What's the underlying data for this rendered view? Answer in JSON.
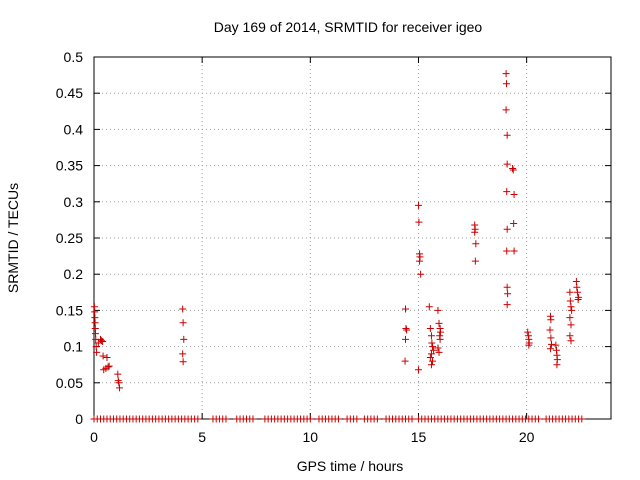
{
  "chart_data": {
    "type": "scatter",
    "title": "Day 169 of 2014, SRMTID for receiver igeo",
    "xlabel": "GPS time / hours",
    "ylabel": "SRMTID / TECUs",
    "xlim": [
      0,
      23.9
    ],
    "ylim": [
      0,
      0.5
    ],
    "xticks": [
      0,
      5,
      10,
      15,
      20
    ],
    "yticks": [
      0,
      0.05,
      0.1,
      0.15,
      0.2,
      0.25,
      0.3,
      0.35,
      0.4,
      0.45,
      0.5
    ],
    "xtick_labels": [
      "0",
      "5",
      "10",
      "15",
      "20"
    ],
    "ytick_labels": [
      "0",
      "0.05",
      "0.1",
      "0.15",
      "0.2",
      "0.25",
      "0.3",
      "0.35",
      "0.4",
      "0.45",
      "0.5"
    ],
    "grid": true,
    "marker": "+",
    "color": "#cc0000",
    "series": [
      {
        "name": "SRMTID",
        "points": [
          [
            0.02,
            0.155
          ],
          [
            0.03,
            0.148
          ],
          [
            0.04,
            0.14
          ],
          [
            0.05,
            0.133
          ],
          [
            0.06,
            0.125
          ],
          [
            0.07,
            0.118
          ],
          [
            0.08,
            0.11
          ],
          [
            0.1,
            0.1
          ],
          [
            0.12,
            0.092
          ],
          [
            0.2,
            0.105
          ],
          [
            0.3,
            0.11
          ],
          [
            0.35,
            0.108
          ],
          [
            0.4,
            0.107
          ],
          [
            0.42,
            0.087
          ],
          [
            0.45,
            0.068
          ],
          [
            0.55,
            0.07
          ],
          [
            0.6,
            0.085
          ],
          [
            0.65,
            0.072
          ],
          [
            0.7,
            0.073
          ],
          [
            1.1,
            0.062
          ],
          [
            1.12,
            0.053
          ],
          [
            1.15,
            0.05
          ],
          [
            1.18,
            0.043
          ],
          [
            4.1,
            0.152
          ],
          [
            4.12,
            0.133
          ],
          [
            4.15,
            0.11
          ],
          [
            4.1,
            0.09
          ],
          [
            4.12,
            0.079
          ],
          [
            14.4,
            0.152
          ],
          [
            14.42,
            0.125
          ],
          [
            14.45,
            0.123
          ],
          [
            14.4,
            0.11
          ],
          [
            14.38,
            0.08
          ],
          [
            15.0,
            0.295
          ],
          [
            15.02,
            0.272
          ],
          [
            15.05,
            0.228
          ],
          [
            15.07,
            0.224
          ],
          [
            15.05,
            0.218
          ],
          [
            15.1,
            0.2
          ],
          [
            15.0,
            0.068
          ],
          [
            15.5,
            0.155
          ],
          [
            15.55,
            0.125
          ],
          [
            15.6,
            0.115
          ],
          [
            15.62,
            0.105
          ],
          [
            15.65,
            0.1
          ],
          [
            15.7,
            0.095
          ],
          [
            15.6,
            0.09
          ],
          [
            15.55,
            0.085
          ],
          [
            15.65,
            0.08
          ],
          [
            15.6,
            0.075
          ],
          [
            15.9,
            0.15
          ],
          [
            15.95,
            0.132
          ],
          [
            16.0,
            0.125
          ],
          [
            16.02,
            0.12
          ],
          [
            15.98,
            0.115
          ],
          [
            16.0,
            0.11
          ],
          [
            15.9,
            0.098
          ],
          [
            15.95,
            0.092
          ],
          [
            17.6,
            0.268
          ],
          [
            17.62,
            0.262
          ],
          [
            17.6,
            0.258
          ],
          [
            17.65,
            0.242
          ],
          [
            17.63,
            0.218
          ],
          [
            19.05,
            0.477
          ],
          [
            19.07,
            0.463
          ],
          [
            19.05,
            0.427
          ],
          [
            19.1,
            0.392
          ],
          [
            19.1,
            0.352
          ],
          [
            19.08,
            0.314
          ],
          [
            19.1,
            0.262
          ],
          [
            19.08,
            0.232
          ],
          [
            19.1,
            0.182
          ],
          [
            19.12,
            0.173
          ],
          [
            19.1,
            0.158
          ],
          [
            19.35,
            0.346
          ],
          [
            19.38,
            0.344
          ],
          [
            19.42,
            0.31
          ],
          [
            19.4,
            0.27
          ],
          [
            19.42,
            0.232
          ],
          [
            20.05,
            0.12
          ],
          [
            20.08,
            0.115
          ],
          [
            20.1,
            0.11
          ],
          [
            20.12,
            0.105
          ],
          [
            20.1,
            0.102
          ],
          [
            21.1,
            0.142
          ],
          [
            21.12,
            0.137
          ],
          [
            21.08,
            0.123
          ],
          [
            21.12,
            0.112
          ],
          [
            21.15,
            0.103
          ],
          [
            21.1,
            0.097
          ],
          [
            21.35,
            0.102
          ],
          [
            21.38,
            0.095
          ],
          [
            21.4,
            0.088
          ],
          [
            21.42,
            0.082
          ],
          [
            21.4,
            0.075
          ],
          [
            22.0,
            0.175
          ],
          [
            22.02,
            0.163
          ],
          [
            22.05,
            0.155
          ],
          [
            22.08,
            0.15
          ],
          [
            22.0,
            0.14
          ],
          [
            22.05,
            0.13
          ],
          [
            22.0,
            0.115
          ],
          [
            22.05,
            0.108
          ],
          [
            22.3,
            0.19
          ],
          [
            22.32,
            0.182
          ],
          [
            22.35,
            0.175
          ],
          [
            22.4,
            0.168
          ],
          [
            22.38,
            0.165
          ]
        ],
        "zero_points_x": [
          0.0,
          0.15,
          0.3,
          0.45,
          0.6,
          0.75,
          0.9,
          1.05,
          1.2,
          1.35,
          1.5,
          1.65,
          1.8,
          1.95,
          2.1,
          2.25,
          2.4,
          2.55,
          2.7,
          2.85,
          3.0,
          3.15,
          3.3,
          3.45,
          3.6,
          3.75,
          3.9,
          4.05,
          4.2,
          4.35,
          4.5,
          4.65,
          4.8,
          5.5,
          5.65,
          5.8,
          5.95,
          6.1,
          6.6,
          6.75,
          6.9,
          7.05,
          7.2,
          7.35,
          7.9,
          8.05,
          8.2,
          8.35,
          8.5,
          8.65,
          8.8,
          8.95,
          9.1,
          9.25,
          9.4,
          9.55,
          9.7,
          9.85,
          10.0,
          10.4,
          10.55,
          10.7,
          10.85,
          11.0,
          11.15,
          11.3,
          11.7,
          11.85,
          12.0,
          12.15,
          12.5,
          12.65,
          12.8,
          12.95,
          13.1,
          13.5,
          13.65,
          13.8,
          13.95,
          14.1,
          14.25,
          14.4,
          14.55,
          14.7,
          15.0,
          15.15,
          15.3,
          15.45,
          15.6,
          15.75,
          15.9,
          16.05,
          16.2,
          16.35,
          16.5,
          16.65,
          16.8,
          16.95,
          17.1,
          17.25,
          17.4,
          17.55,
          17.7,
          17.85,
          18.0,
          18.15,
          18.3,
          18.45,
          18.6,
          18.75,
          18.9,
          19.05,
          19.2,
          19.35,
          19.5,
          19.65,
          19.8,
          19.95,
          20.1,
          20.25,
          20.4,
          20.55,
          20.9,
          21.05,
          21.2,
          21.35,
          21.5,
          21.65,
          21.8,
          21.95,
          22.1,
          22.25,
          22.4,
          22.55
        ]
      }
    ]
  }
}
